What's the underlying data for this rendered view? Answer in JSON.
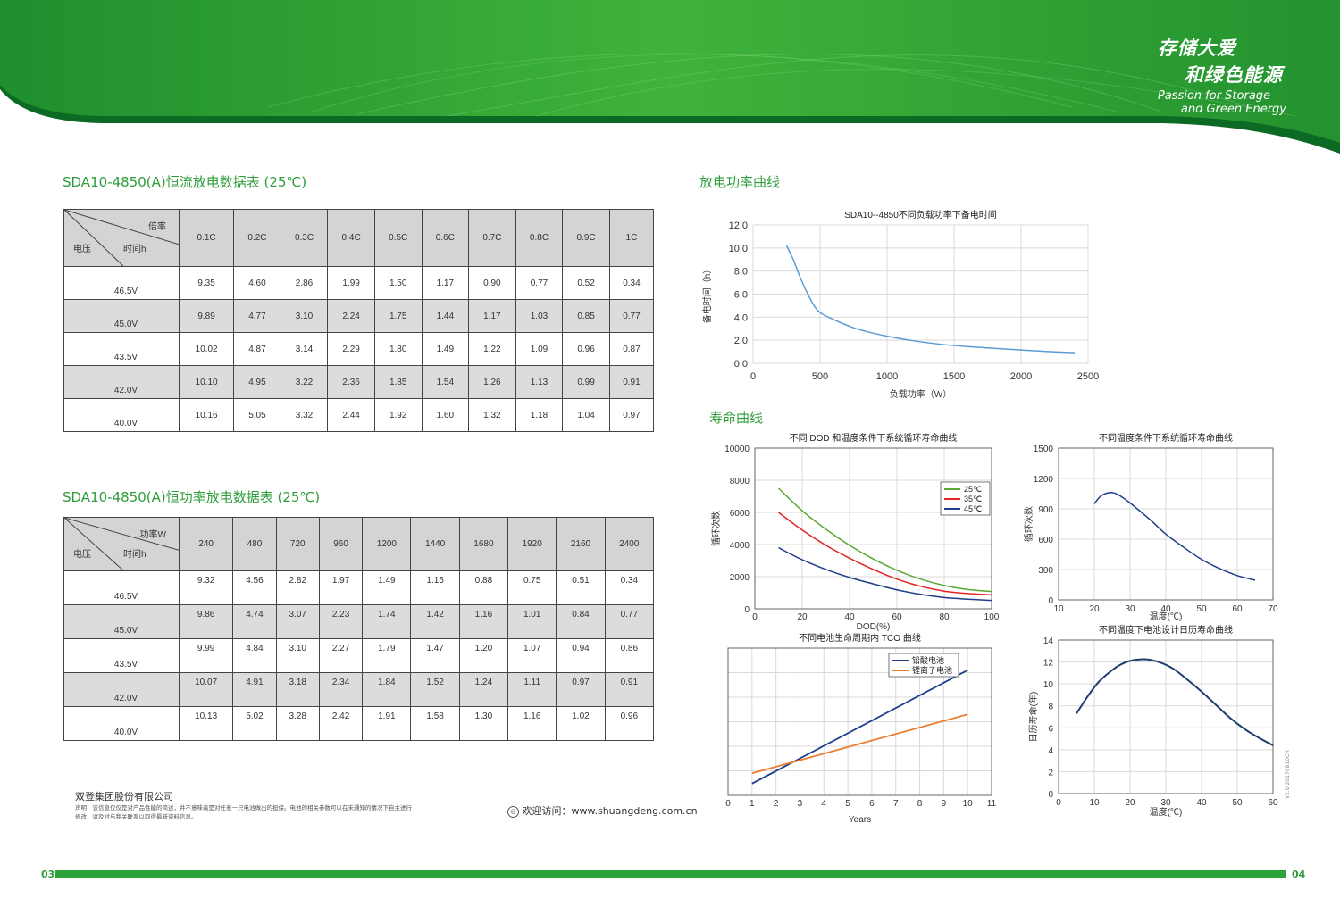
{
  "brand": {
    "slogan_cn_1": "存储大爱",
    "slogan_cn_2": "和绿色能源",
    "slogan_en_1": "Passion for Storage",
    "slogan_en_2": "and Green Energy"
  },
  "table1": {
    "title": "SDA10-4850(A)恒流放电数据表 (25℃)",
    "corner": {
      "top": "倍率",
      "middle": "时间h",
      "left": "电压"
    },
    "columns": [
      "0.1C",
      "0.2C",
      "0.3C",
      "0.4C",
      "0.5C",
      "0.6C",
      "0.7C",
      "0.8C",
      "0.9C",
      "1C"
    ],
    "rows": [
      {
        "voltage": "46.5V",
        "values": [
          "9.35",
          "4.60",
          "2.86",
          "1.99",
          "1.50",
          "1.17",
          "0.90",
          "0.77",
          "0.52",
          "0.34"
        ]
      },
      {
        "voltage": "45.0V",
        "values": [
          "9.89",
          "4.77",
          "3.10",
          "2.24",
          "1.75",
          "1.44",
          "1.17",
          "1.03",
          "0.85",
          "0.77"
        ]
      },
      {
        "voltage": "43.5V",
        "values": [
          "10.02",
          "4.87",
          "3.14",
          "2.29",
          "1.80",
          "1.49",
          "1.22",
          "1.09",
          "0.96",
          "0.87"
        ]
      },
      {
        "voltage": "42.0V",
        "values": [
          "10.10",
          "4.95",
          "3.22",
          "2.36",
          "1.85",
          "1.54",
          "1.26",
          "1.13",
          "0.99",
          "0.91"
        ]
      },
      {
        "voltage": "40.0V",
        "values": [
          "10.16",
          "5.05",
          "3.32",
          "2.44",
          "1.92",
          "1.60",
          "1.32",
          "1.18",
          "1.04",
          "0.97"
        ]
      }
    ]
  },
  "table2": {
    "title": "SDA10-4850(A)恒功率放电数据表 (25℃)",
    "corner": {
      "top": "功率W",
      "middle": "时间h",
      "left": "电压"
    },
    "columns": [
      "240",
      "480",
      "720",
      "960",
      "1200",
      "1440",
      "1680",
      "1920",
      "2160",
      "2400"
    ],
    "rows": [
      {
        "voltage": "46.5V",
        "values": [
          "9.32",
          "4.56",
          "2.82",
          "1.97",
          "1.49",
          "1.15",
          "0.88",
          "0.75",
          "0.51",
          "0.34"
        ]
      },
      {
        "voltage": "45.0V",
        "values": [
          "9.86",
          "4.74",
          "3.07",
          "2.23",
          "1.74",
          "1.42",
          "1.16",
          "1.01",
          "0.84",
          "0.77"
        ]
      },
      {
        "voltage": "43.5V",
        "values": [
          "9.99",
          "4.84",
          "3.10",
          "2.27",
          "1.79",
          "1.47",
          "1.20",
          "1.07",
          "0.94",
          "0.86"
        ]
      },
      {
        "voltage": "42.0V",
        "values": [
          "10.07",
          "4.91",
          "3.18",
          "2.34",
          "1.84",
          "1.52",
          "1.24",
          "1.11",
          "0.97",
          "0.91"
        ]
      },
      {
        "voltage": "40.0V",
        "values": [
          "10.13",
          "5.02",
          "3.28",
          "2.42",
          "1.91",
          "1.58",
          "1.30",
          "1.16",
          "1.02",
          "0.96"
        ]
      }
    ]
  },
  "section_power": "放电功率曲线",
  "section_life": "寿命曲线",
  "chart_data": [
    {
      "id": "power",
      "type": "line",
      "title": "SDA10--4850不同负载功率下备电时间",
      "xlabel": "负载功率（W）",
      "ylabel": "备电时间（h）",
      "xlim": [
        0,
        2500
      ],
      "ylim": [
        0,
        12
      ],
      "xticks": [
        0,
        500,
        1000,
        1500,
        2000,
        2500
      ],
      "yticks": [
        "0.0",
        "2.0",
        "4.0",
        "6.0",
        "8.0",
        "10.0",
        "12.0"
      ],
      "series": [
        {
          "color": "#5b9bd5",
          "points": [
            [
              250,
              10.2
            ],
            [
              300,
              9.0
            ],
            [
              350,
              7.5
            ],
            [
              400,
              6.2
            ],
            [
              450,
              5.1
            ],
            [
              500,
              4.4
            ],
            [
              600,
              3.8
            ],
            [
              700,
              3.3
            ],
            [
              800,
              2.9
            ],
            [
              1000,
              2.35
            ],
            [
              1200,
              1.95
            ],
            [
              1400,
              1.65
            ],
            [
              1600,
              1.45
            ],
            [
              1800,
              1.3
            ],
            [
              2000,
              1.15
            ],
            [
              2200,
              1.02
            ],
            [
              2400,
              0.92
            ]
          ]
        }
      ],
      "grid": true
    },
    {
      "id": "dod",
      "type": "line",
      "title": "不同 DOD 和温度条件下系统循环寿命曲线",
      "xlabel": "DOD(%)",
      "ylabel": "循环次数",
      "xlim": [
        0,
        100
      ],
      "ylim": [
        0,
        10000
      ],
      "xticks": [
        0,
        20,
        40,
        60,
        80,
        100
      ],
      "yticks": [
        0,
        2000,
        4000,
        6000,
        8000,
        10000
      ],
      "legend": "top-right",
      "series": [
        {
          "name": "25℃",
          "color": "#5aa832",
          "points": [
            [
              10,
              7500
            ],
            [
              20,
              6100
            ],
            [
              30,
              4950
            ],
            [
              40,
              3950
            ],
            [
              50,
              3100
            ],
            [
              60,
              2400
            ],
            [
              70,
              1850
            ],
            [
              80,
              1450
            ],
            [
              90,
              1200
            ],
            [
              100,
              1080
            ]
          ]
        },
        {
          "name": "35℃",
          "color": "#e32322",
          "points": [
            [
              10,
              6000
            ],
            [
              20,
              4900
            ],
            [
              30,
              3950
            ],
            [
              40,
              3150
            ],
            [
              50,
              2450
            ],
            [
              60,
              1850
            ],
            [
              70,
              1400
            ],
            [
              80,
              1100
            ],
            [
              90,
              950
            ],
            [
              100,
              870
            ]
          ]
        },
        {
          "name": "45℃",
          "color": "#1f3d8a",
          "points": [
            [
              10,
              3800
            ],
            [
              20,
              3050
            ],
            [
              30,
              2450
            ],
            [
              40,
              1950
            ],
            [
              50,
              1550
            ],
            [
              60,
              1180
            ],
            [
              70,
              900
            ],
            [
              80,
              700
            ],
            [
              90,
              600
            ],
            [
              100,
              520
            ]
          ]
        }
      ],
      "grid": true
    },
    {
      "id": "temp_cycle",
      "type": "line",
      "title": "不同温度条件下系统循环寿命曲线",
      "xlabel": "温度(℃)",
      "ylabel": "循环次数",
      "xlim": [
        10,
        70
      ],
      "ylim": [
        0,
        1500
      ],
      "xticks": [
        10,
        20,
        30,
        40,
        50,
        60,
        70
      ],
      "yticks": [
        0,
        300,
        600,
        900,
        1200,
        1500
      ],
      "series": [
        {
          "color": "#1f3d8a",
          "points": [
            [
              20,
              950
            ],
            [
              22,
              1030
            ],
            [
              25,
              1060
            ],
            [
              28,
              1010
            ],
            [
              32,
              900
            ],
            [
              36,
              780
            ],
            [
              40,
              650
            ],
            [
              45,
              520
            ],
            [
              50,
              400
            ],
            [
              55,
              310
            ],
            [
              60,
              240
            ],
            [
              65,
              195
            ]
          ]
        }
      ],
      "grid": true
    },
    {
      "id": "tco",
      "type": "line",
      "title": "不同电池生命周期内 TCO 曲线",
      "xlabel": "Years",
      "ylabel": "",
      "xlim": [
        0,
        11
      ],
      "xticks": [
        0,
        1,
        2,
        3,
        4,
        5,
        6,
        7,
        8,
        9,
        10,
        11
      ],
      "legend": "top-left",
      "series": [
        {
          "name": "铅酸电池",
          "color": "#1f3d8a",
          "points": [
            [
              1,
              0.08
            ],
            [
              10,
              0.85
            ]
          ]
        },
        {
          "name": "锂离子电池",
          "color": "#ed7d31",
          "points": [
            [
              1,
              0.15
            ],
            [
              10,
              0.55
            ]
          ]
        }
      ],
      "grid": true
    },
    {
      "id": "calendar",
      "type": "line",
      "title": "不同温度下电池设计日历寿命曲线",
      "xlabel": "温度(℃)",
      "ylabel": "日历寿命(年)",
      "xlim": [
        0,
        60
      ],
      "ylim": [
        0,
        14
      ],
      "xticks": [
        0,
        10,
        20,
        30,
        40,
        50,
        60
      ],
      "yticks": [
        0,
        2,
        4,
        6,
        8,
        10,
        12,
        14
      ],
      "series": [
        {
          "color": "#1f3d6e",
          "points": [
            [
              5,
              7.3
            ],
            [
              8,
              8.8
            ],
            [
              11,
              10.1
            ],
            [
              14,
              11.0
            ],
            [
              17,
              11.7
            ],
            [
              20,
              12.1
            ],
            [
              24,
              12.25
            ],
            [
              28,
              12.0
            ],
            [
              32,
              11.4
            ],
            [
              36,
              10.4
            ],
            [
              40,
              9.3
            ],
            [
              44,
              8.1
            ],
            [
              48,
              6.9
            ],
            [
              52,
              5.9
            ],
            [
              56,
              5.1
            ],
            [
              60,
              4.4
            ]
          ]
        }
      ],
      "grid": true
    }
  ],
  "footer": {
    "company": "双登集团股份有限公司",
    "note": "声明：该信息仅仅是对产品性能的简述，并不意味着是对任意一只电池做出的担保。电池的相关参数可以在未通知的情况下自主进行修改，请及时与我关联系以取得最新资料信息。",
    "visit": "欢迎访问：www.shuangdeng.com.cn",
    "page_left": "03",
    "page_right": "04",
    "version": "V2.0 20170810CH"
  }
}
